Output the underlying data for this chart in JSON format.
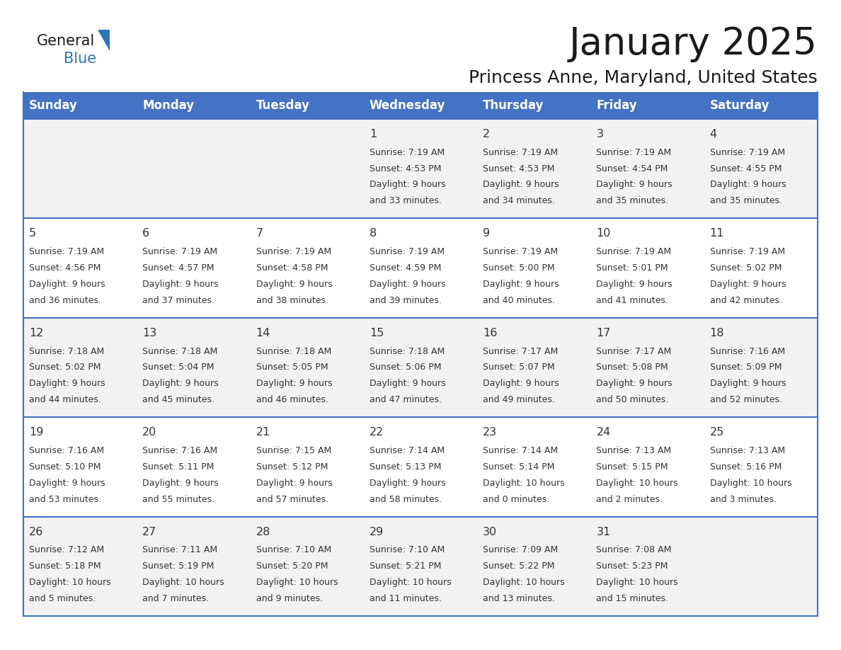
{
  "title": "January 2025",
  "subtitle": "Princess Anne, Maryland, United States",
  "days_of_week": [
    "Sunday",
    "Monday",
    "Tuesday",
    "Wednesday",
    "Thursday",
    "Friday",
    "Saturday"
  ],
  "header_bg": "#4472C4",
  "header_text_color": "#FFFFFF",
  "row_bg_even": "#F2F2F2",
  "row_bg_odd": "#FFFFFF",
  "day_number_color": "#333333",
  "text_color": "#333333",
  "border_color": "#4472C4",
  "title_color": "#1a1a1a",
  "subtitle_color": "#1a1a1a",
  "logo_general_color": "#1a1a1a",
  "logo_blue_color": "#2E75B6",
  "logo_triangle_color": "#2E75B6",
  "calendar_data": [
    [
      null,
      null,
      null,
      {
        "day": 1,
        "sunrise": "7:19 AM",
        "sunset": "4:53 PM",
        "daylight": "9 hours and 33 minutes."
      },
      {
        "day": 2,
        "sunrise": "7:19 AM",
        "sunset": "4:53 PM",
        "daylight": "9 hours and 34 minutes."
      },
      {
        "day": 3,
        "sunrise": "7:19 AM",
        "sunset": "4:54 PM",
        "daylight": "9 hours and 35 minutes."
      },
      {
        "day": 4,
        "sunrise": "7:19 AM",
        "sunset": "4:55 PM",
        "daylight": "9 hours and 35 minutes."
      }
    ],
    [
      {
        "day": 5,
        "sunrise": "7:19 AM",
        "sunset": "4:56 PM",
        "daylight": "9 hours and 36 minutes."
      },
      {
        "day": 6,
        "sunrise": "7:19 AM",
        "sunset": "4:57 PM",
        "daylight": "9 hours and 37 minutes."
      },
      {
        "day": 7,
        "sunrise": "7:19 AM",
        "sunset": "4:58 PM",
        "daylight": "9 hours and 38 minutes."
      },
      {
        "day": 8,
        "sunrise": "7:19 AM",
        "sunset": "4:59 PM",
        "daylight": "9 hours and 39 minutes."
      },
      {
        "day": 9,
        "sunrise": "7:19 AM",
        "sunset": "5:00 PM",
        "daylight": "9 hours and 40 minutes."
      },
      {
        "day": 10,
        "sunrise": "7:19 AM",
        "sunset": "5:01 PM",
        "daylight": "9 hours and 41 minutes."
      },
      {
        "day": 11,
        "sunrise": "7:19 AM",
        "sunset": "5:02 PM",
        "daylight": "9 hours and 42 minutes."
      }
    ],
    [
      {
        "day": 12,
        "sunrise": "7:18 AM",
        "sunset": "5:02 PM",
        "daylight": "9 hours and 44 minutes."
      },
      {
        "day": 13,
        "sunrise": "7:18 AM",
        "sunset": "5:04 PM",
        "daylight": "9 hours and 45 minutes."
      },
      {
        "day": 14,
        "sunrise": "7:18 AM",
        "sunset": "5:05 PM",
        "daylight": "9 hours and 46 minutes."
      },
      {
        "day": 15,
        "sunrise": "7:18 AM",
        "sunset": "5:06 PM",
        "daylight": "9 hours and 47 minutes."
      },
      {
        "day": 16,
        "sunrise": "7:17 AM",
        "sunset": "5:07 PM",
        "daylight": "9 hours and 49 minutes."
      },
      {
        "day": 17,
        "sunrise": "7:17 AM",
        "sunset": "5:08 PM",
        "daylight": "9 hours and 50 minutes."
      },
      {
        "day": 18,
        "sunrise": "7:16 AM",
        "sunset": "5:09 PM",
        "daylight": "9 hours and 52 minutes."
      }
    ],
    [
      {
        "day": 19,
        "sunrise": "7:16 AM",
        "sunset": "5:10 PM",
        "daylight": "9 hours and 53 minutes."
      },
      {
        "day": 20,
        "sunrise": "7:16 AM",
        "sunset": "5:11 PM",
        "daylight": "9 hours and 55 minutes."
      },
      {
        "day": 21,
        "sunrise": "7:15 AM",
        "sunset": "5:12 PM",
        "daylight": "9 hours and 57 minutes."
      },
      {
        "day": 22,
        "sunrise": "7:14 AM",
        "sunset": "5:13 PM",
        "daylight": "9 hours and 58 minutes."
      },
      {
        "day": 23,
        "sunrise": "7:14 AM",
        "sunset": "5:14 PM",
        "daylight": "10 hours and 0 minutes."
      },
      {
        "day": 24,
        "sunrise": "7:13 AM",
        "sunset": "5:15 PM",
        "daylight": "10 hours and 2 minutes."
      },
      {
        "day": 25,
        "sunrise": "7:13 AM",
        "sunset": "5:16 PM",
        "daylight": "10 hours and 3 minutes."
      }
    ],
    [
      {
        "day": 26,
        "sunrise": "7:12 AM",
        "sunset": "5:18 PM",
        "daylight": "10 hours and 5 minutes."
      },
      {
        "day": 27,
        "sunrise": "7:11 AM",
        "sunset": "5:19 PM",
        "daylight": "10 hours and 7 minutes."
      },
      {
        "day": 28,
        "sunrise": "7:10 AM",
        "sunset": "5:20 PM",
        "daylight": "10 hours and 9 minutes."
      },
      {
        "day": 29,
        "sunrise": "7:10 AM",
        "sunset": "5:21 PM",
        "daylight": "10 hours and 11 minutes."
      },
      {
        "day": 30,
        "sunrise": "7:09 AM",
        "sunset": "5:22 PM",
        "daylight": "10 hours and 13 minutes."
      },
      {
        "day": 31,
        "sunrise": "7:08 AM",
        "sunset": "5:23 PM",
        "daylight": "10 hours and 15 minutes."
      },
      null
    ]
  ]
}
